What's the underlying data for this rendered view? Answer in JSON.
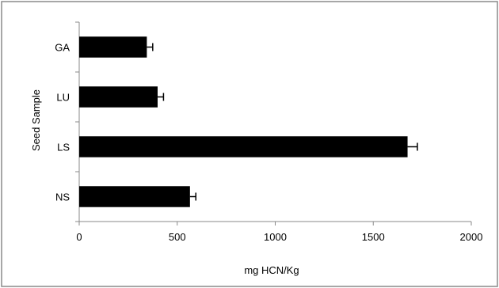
{
  "chart_data": {
    "type": "bar",
    "orientation": "horizontal",
    "categories": [
      "GA",
      "LU",
      "LS",
      "NS"
    ],
    "values": [
      345,
      400,
      1675,
      565
    ],
    "errors": [
      30,
      30,
      50,
      30
    ],
    "xlabel": "mg HCN/Kg",
    "ylabel": "Seed Sample",
    "xlim": [
      0,
      2000
    ],
    "xticks": [
      0,
      500,
      1000,
      1500,
      2000
    ],
    "grid": false,
    "legend": false,
    "colors": {
      "bar": "#000000",
      "axis": "#888888",
      "frame": "#8a8a8a"
    }
  }
}
